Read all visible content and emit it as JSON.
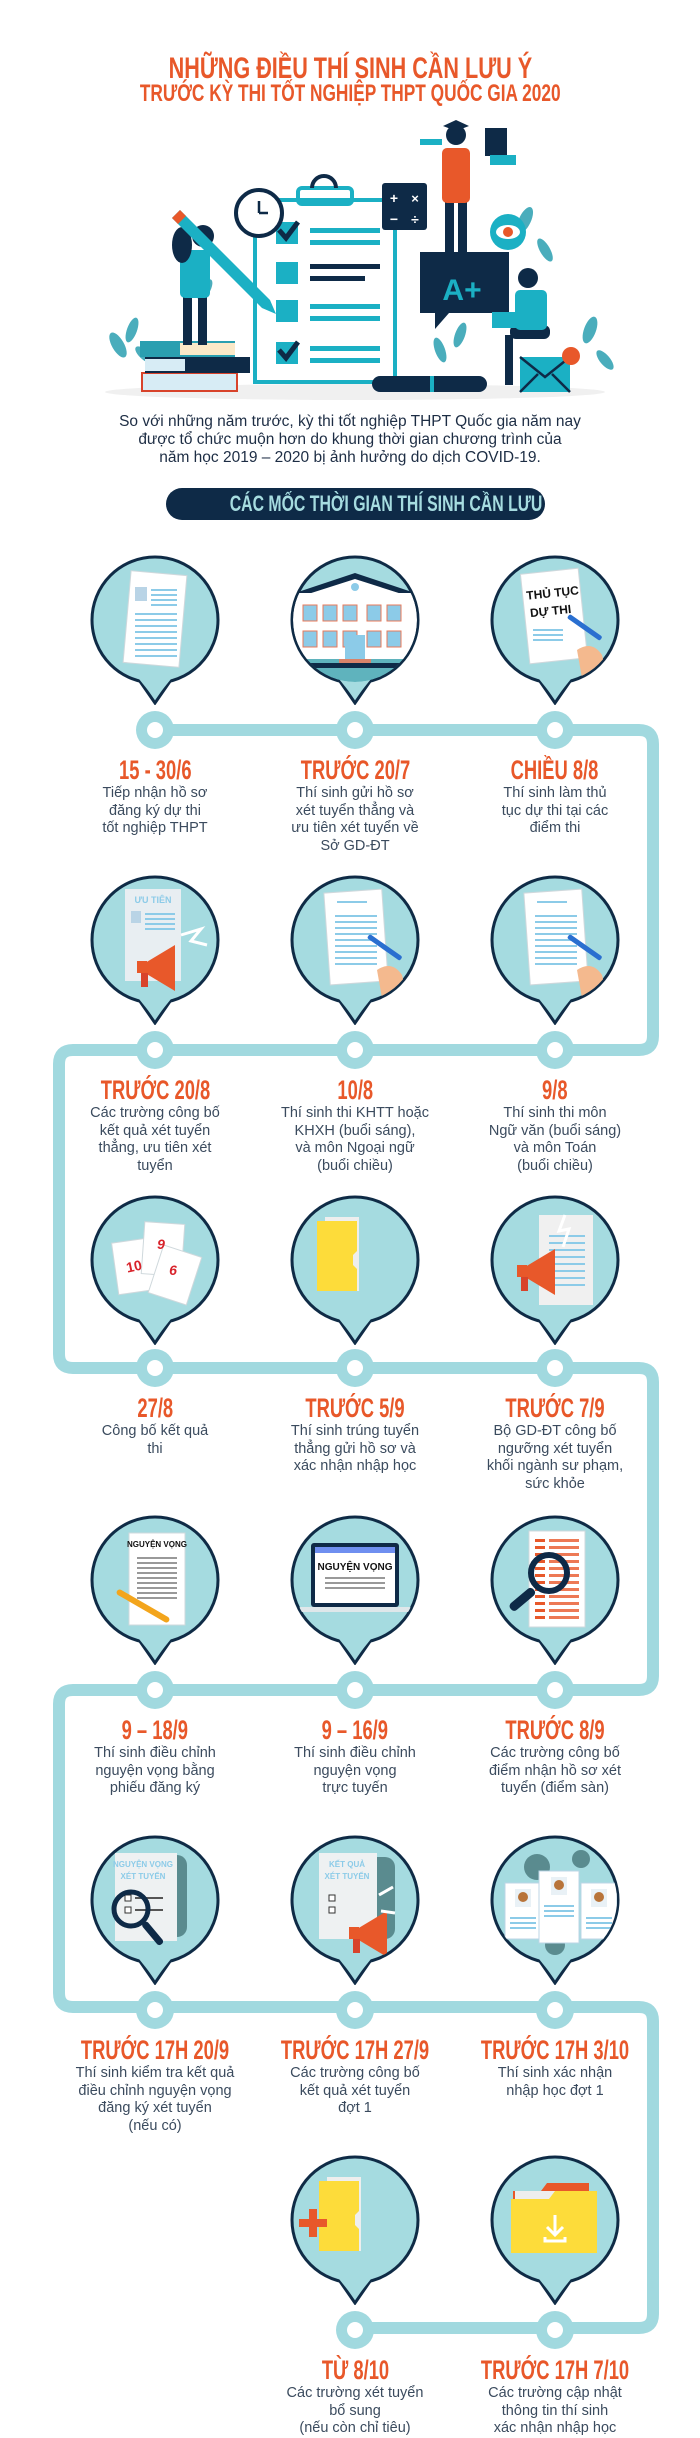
{
  "header": {
    "title_line1": "NHỮNG ĐIỀU THÍ SINH CẦN LƯU Ý",
    "title_line2": "TRƯỚC KỲ THI TỐT NGHIỆP THPT QUỐC GIA 2020",
    "illustration_grade": "A+"
  },
  "intro": "So với những năm trước, kỳ thi tốt nghiệp THPT Quốc gia năm nay\nđược tổ chức muộn hơn do khung thời gian chương trình của\nnăm học 2019 – 2020 bị ảnh hưởng do dịch COVID-19.",
  "banner": "CÁC MỐC THỜI GIAN THÍ SINH CẦN LƯU Ý",
  "colors": {
    "accent": "#e8582a",
    "navy": "#0e2a47",
    "teal": "#a5dbe0",
    "line": "#a1d9df",
    "folder": "#fddc3a"
  },
  "items": [
    {
      "date": "15 - 30/6",
      "desc": "Tiếp nhận hồ sơ\nđăng ký dự thi\ntốt nghiệp THPT",
      "icon": "document-icon",
      "icon_text": []
    },
    {
      "date": "TRƯỚC 20/7",
      "desc": "Thí sinh gửi hồ sơ\nxét tuyển thẳng và\nưu tiên xét tuyển về\nSở GD-ĐT",
      "icon": "school-building-icon",
      "icon_text": []
    },
    {
      "date": "CHIỀU 8/8",
      "desc": "Thí sinh làm thủ\ntục dự thi tại các\nđiểm thi",
      "icon": "form-signing-icon",
      "icon_text": [
        "THỦ TỤC",
        "DỰ THI"
      ]
    },
    {
      "date": "TRƯỚC 20/8",
      "desc": "Các trường công bố\nkết quả xét tuyển\nthẳng, ưu tiên xét\ntuyển",
      "icon": "priority-megaphone-icon",
      "icon_text": [
        "ƯU TIÊN"
      ]
    },
    {
      "date": "10/8",
      "desc": "Thí sinh thi KHTT hoặc\nKHXH (buổi sáng),\nvà môn Ngoại ngữ\n(buổi chiều)",
      "icon": "exam-writing-icon",
      "icon_text": []
    },
    {
      "date": "9/8",
      "desc": "Thí sinh thi môn\nNgữ văn (buổi sáng)\nvà môn Toán\n(buổi chiều)",
      "icon": "exam-writing-icon",
      "icon_text": []
    },
    {
      "date": "27/8",
      "desc": "Công bố kết quả\nthi",
      "icon": "score-papers-icon",
      "icon_text": [
        "10",
        "9",
        "6"
      ]
    },
    {
      "date": "TRƯỚC 5/9",
      "desc": "Thí sinh trúng tuyển\nthẳng gửi hồ sơ và\nxác nhận nhập học",
      "icon": "folder-icon",
      "icon_text": []
    },
    {
      "date": "TRƯỚC 7/9",
      "desc": "Bộ GD-ĐT công bố\nngưỡng xét tuyển\nkhối ngành sư phạm,\nsức khỏe",
      "icon": "announcement-icon",
      "icon_text": []
    },
    {
      "date": "9 – 18/9",
      "desc": "Thí sinh điều chỉnh\nnguyện vọng bằng\nphiếu đăng ký",
      "icon": "wish-form-pencil-icon",
      "icon_text": [
        "NGUYỆN VỌNG"
      ]
    },
    {
      "date": "9 – 16/9",
      "desc": "Thí sinh điều chỉnh\nnguyện vọng\ntrực tuyến",
      "icon": "laptop-icon",
      "icon_text": [
        "NGUYỆN VỌNG"
      ]
    },
    {
      "date": "TRƯỚC 8/9",
      "desc": "Các trường công bố\nđiểm nhận hồ sơ xét\ntuyển (điểm sàn)",
      "icon": "magnifier-document-icon",
      "icon_text": []
    },
    {
      "date": "TRƯỚC 17H 20/9",
      "desc": "Thí sinh kiểm tra kết quả\nđiều chỉnh nguyện vọng\nđăng ký xét tuyển\n(nếu có)",
      "icon": "scroll-magnifier-icon",
      "icon_text": [
        "NGUYỆN VỌNG",
        "XÉT TUYỂN"
      ]
    },
    {
      "date": "TRƯỚC 17H 27/9",
      "desc": "Các trường công bố\nkết quả xét tuyển\nđợt 1",
      "icon": "scroll-megaphone-icon",
      "icon_text": [
        "KẾT QUẢ",
        "XÉT TUYỂN"
      ]
    },
    {
      "date": "TRƯỚC 17H 3/10",
      "desc": "Thí sinh xác nhận\nnhập học đợt 1",
      "icon": "profiles-gears-icon",
      "icon_text": []
    },
    {
      "date": "TỪ 8/10",
      "desc": "Các trường xét tuyển\nbổ sung\n(nếu còn chỉ tiêu)",
      "icon": "folder-plus-icon",
      "icon_text": []
    },
    {
      "date": "TRƯỚC 17H 7/10",
      "desc": "Các trường cập nhật\nthông tin thí sinh\nxác nhận nhập học",
      "icon": "folder-download-icon",
      "icon_text": []
    }
  ]
}
